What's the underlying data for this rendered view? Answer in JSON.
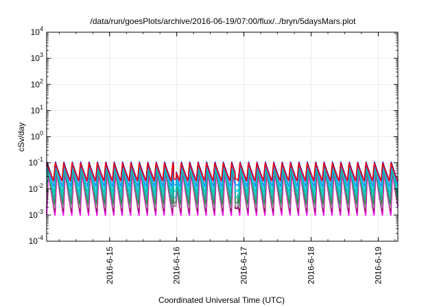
{
  "chart_data": {
    "type": "line",
    "title": "/data/run/goesPlots/archive/2016-06-19/07:00/flux/../bryn/5daysMars.plot",
    "xlabel": "Coordinated Universal Time (UTC)",
    "ylabel": "cSv/day",
    "y_scale": "log",
    "ylim": [
      0.0001,
      10000
    ],
    "xlim": [
      "2016-06-14T01:30",
      "2016-06-19T07:00"
    ],
    "x_tick_labels": [
      "2016-6-15",
      "2016-6-16",
      "2016-6-17",
      "2016-6-18",
      "2016-6-19"
    ],
    "y_tick_labels": [
      {
        "base": "10",
        "exp": "-4"
      },
      {
        "base": "10",
        "exp": "-3"
      },
      {
        "base": "10",
        "exp": "-2"
      },
      {
        "base": "10",
        "exp": "-1"
      },
      {
        "base": "10",
        "exp": "0"
      },
      {
        "base": "10",
        "exp": "1"
      },
      {
        "base": "10",
        "exp": "2"
      },
      {
        "base": "10",
        "exp": "3"
      },
      {
        "base": "10",
        "exp": "4"
      }
    ],
    "grid": true,
    "cycle_hours": 3,
    "series": [
      {
        "color": "#ff00ff",
        "peak": 0.05,
        "trough": 0.001
      },
      {
        "color": "#8b2252",
        "peak": 0.06,
        "trough": 0.0013
      },
      {
        "color": "#a0a0a0",
        "peak": 0.065,
        "trough": 0.0018
      },
      {
        "color": "#2e8b57",
        "peak": 0.07,
        "trough": 0.0025
      },
      {
        "color": "#20b2aa",
        "peak": 0.08,
        "trough": 0.004
      },
      {
        "color": "#00ced1",
        "peak": 0.09,
        "trough": 0.007
      },
      {
        "color": "#1e90ff",
        "peak": 0.1,
        "trough": 0.012
      },
      {
        "color": "#0000cd",
        "peak": 0.11,
        "trough": 0.02
      },
      {
        "color": "#ff0000",
        "peak": 0.1,
        "trough": 0.02
      }
    ],
    "dips": [
      {
        "at": "2016-06-15T23:20",
        "value": 0.0022
      },
      {
        "at": "2016-06-16T21:20",
        "value": 0.0018
      }
    ]
  }
}
